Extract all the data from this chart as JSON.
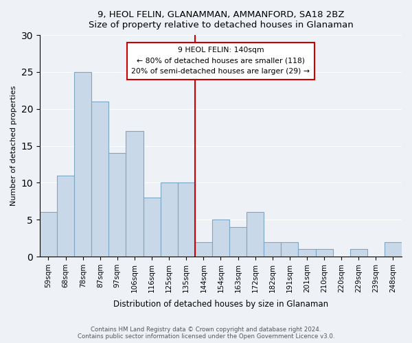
{
  "title": "9, HEOL FELIN, GLANAMMAN, AMMANFORD, SA18 2BZ",
  "subtitle": "Size of property relative to detached houses in Glanaman",
  "xlabel": "Distribution of detached houses by size in Glanaman",
  "ylabel": "Number of detached properties",
  "bin_labels": [
    "59sqm",
    "68sqm",
    "78sqm",
    "87sqm",
    "97sqm",
    "106sqm",
    "116sqm",
    "125sqm",
    "135sqm",
    "144sqm",
    "154sqm",
    "163sqm",
    "172sqm",
    "182sqm",
    "191sqm",
    "201sqm",
    "210sqm",
    "220sqm",
    "229sqm",
    "239sqm",
    "248sqm"
  ],
  "bar_heights": [
    6,
    11,
    25,
    21,
    14,
    17,
    8,
    10,
    10,
    2,
    5,
    4,
    6,
    2,
    2,
    1,
    1,
    0,
    1,
    0,
    2
  ],
  "bar_color": "#c8d8e8",
  "bar_edge_color": "#7ba7c4",
  "property_line_x": 9,
  "property_line_label": "9 HEOL FELIN: 140sqm",
  "annotation_line1": "← 80% of detached houses are smaller (118)",
  "annotation_line2": "20% of semi-detached houses are larger (29) →",
  "annotation_box_color": "#ffffff",
  "annotation_box_edge": "#cc0000",
  "property_line_color": "#cc0000",
  "ylim": [
    0,
    30
  ],
  "yticks": [
    0,
    5,
    10,
    15,
    20,
    25,
    30
  ],
  "footer_line1": "Contains HM Land Registry data © Crown copyright and database right 2024.",
  "footer_line2": "Contains public sector information licensed under the Open Government Licence v3.0.",
  "bg_color": "#eef2f7",
  "plot_bg_color": "#eef2f7"
}
